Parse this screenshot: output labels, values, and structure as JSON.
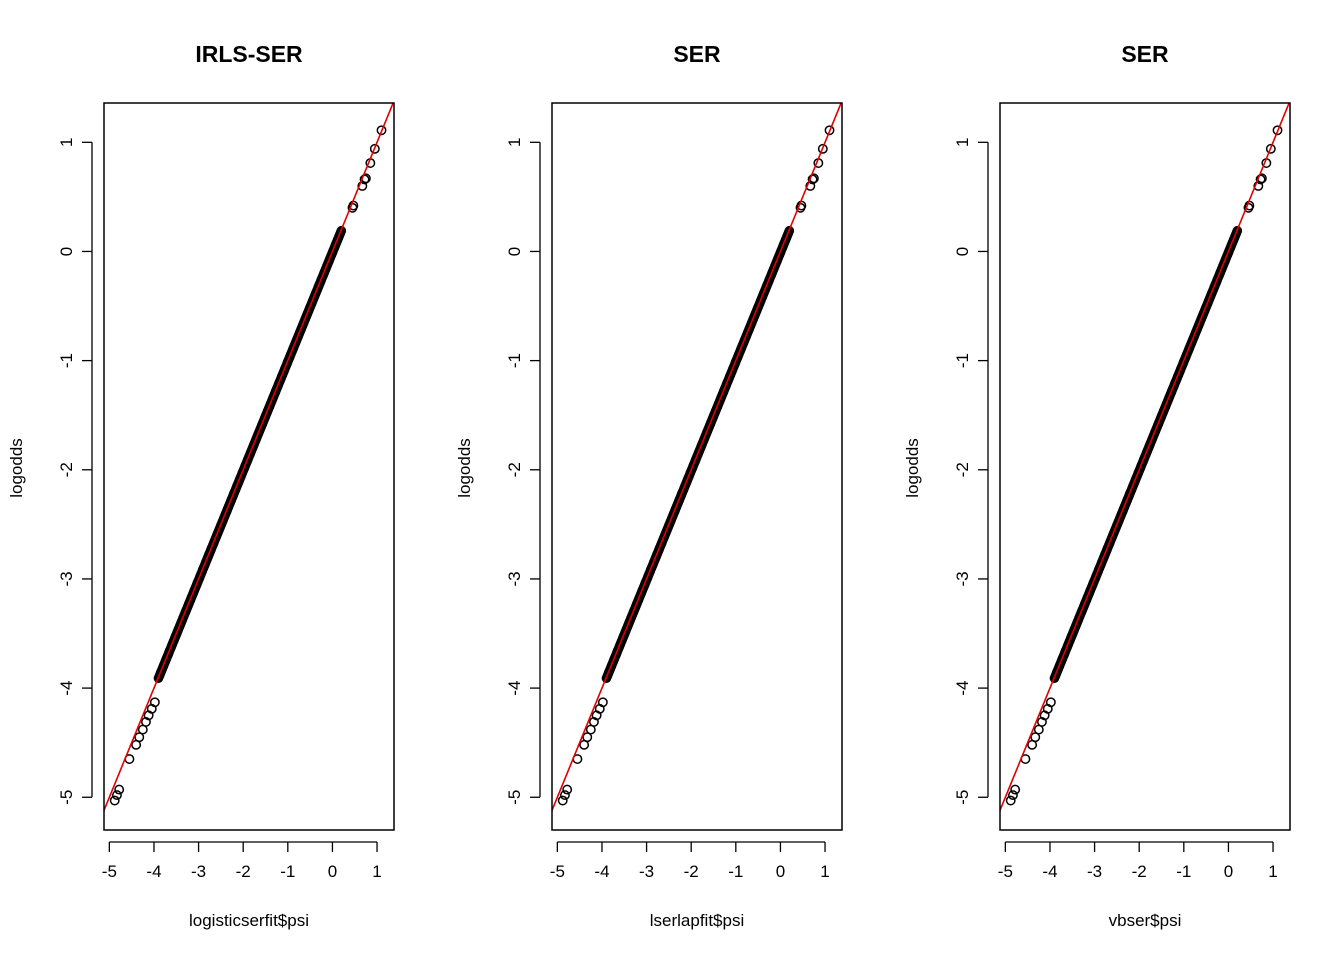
{
  "colors": {
    "points": "#000000",
    "reference_line": "#e00000",
    "axes": "#000000",
    "background": "#ffffff"
  },
  "chart_data": [
    {
      "type": "scatter",
      "title": "IRLS-SER",
      "xlabel": "logisticserfit$psi",
      "ylabel": "logodds",
      "xlim": [
        -5.12,
        1.38
      ],
      "ylim": [
        -5.3,
        1.36
      ],
      "xticks": [
        -5,
        -4,
        -3,
        -2,
        -1,
        0,
        1
      ],
      "yticks": [
        -5,
        -4,
        -3,
        -2,
        -1,
        0,
        1
      ],
      "reference_line": {
        "intercept": 0,
        "slope": 1
      },
      "grid": false,
      "points": {
        "dense_band": {
          "x_from": -3.9,
          "x_to": 0.2,
          "offset": -0.01
        },
        "x": [
          -4.88,
          -4.83,
          -4.78,
          -4.55,
          -4.4,
          -4.33,
          -4.25,
          -4.18,
          -4.12,
          -4.05,
          -3.98,
          0.45,
          0.47,
          0.67,
          0.72,
          0.75,
          0.95,
          1.1,
          0.85
        ],
        "y": [
          -5.03,
          -4.98,
          -4.93,
          -4.65,
          -4.52,
          -4.45,
          -4.38,
          -4.31,
          -4.25,
          -4.19,
          -4.13,
          0.4,
          0.42,
          0.6,
          0.66,
          0.67,
          0.94,
          1.11,
          0.81
        ]
      }
    },
    {
      "type": "scatter",
      "title": "SER",
      "xlabel": "lserlapfit$psi",
      "ylabel": "logodds",
      "xlim": [
        -5.12,
        1.38
      ],
      "ylim": [
        -5.3,
        1.36
      ],
      "xticks": [
        -5,
        -4,
        -3,
        -2,
        -1,
        0,
        1
      ],
      "yticks": [
        -5,
        -4,
        -3,
        -2,
        -1,
        0,
        1
      ],
      "reference_line": {
        "intercept": 0,
        "slope": 1
      },
      "grid": false,
      "points": {
        "dense_band": {
          "x_from": -3.9,
          "x_to": 0.2,
          "offset": -0.01
        },
        "x": [
          -4.88,
          -4.83,
          -4.78,
          -4.55,
          -4.4,
          -4.33,
          -4.25,
          -4.18,
          -4.12,
          -4.05,
          -3.98,
          0.45,
          0.47,
          0.67,
          0.72,
          0.75,
          0.95,
          1.1,
          0.85
        ],
        "y": [
          -5.03,
          -4.98,
          -4.93,
          -4.65,
          -4.52,
          -4.45,
          -4.38,
          -4.31,
          -4.25,
          -4.19,
          -4.13,
          0.4,
          0.42,
          0.6,
          0.66,
          0.67,
          0.94,
          1.11,
          0.81
        ]
      }
    },
    {
      "type": "scatter",
      "title": "SER",
      "xlabel": "vbser$psi",
      "ylabel": "logodds",
      "xlim": [
        -5.12,
        1.38
      ],
      "ylim": [
        -5.3,
        1.36
      ],
      "xticks": [
        -5,
        -4,
        -3,
        -2,
        -1,
        0,
        1
      ],
      "yticks": [
        -5,
        -4,
        -3,
        -2,
        -1,
        0,
        1
      ],
      "reference_line": {
        "intercept": 0,
        "slope": 1
      },
      "grid": false,
      "points": {
        "dense_band": {
          "x_from": -3.9,
          "x_to": 0.2,
          "offset": -0.01
        },
        "x": [
          -4.88,
          -4.83,
          -4.78,
          -4.55,
          -4.4,
          -4.33,
          -4.25,
          -4.18,
          -4.12,
          -4.05,
          -3.98,
          0.45,
          0.47,
          0.67,
          0.72,
          0.75,
          0.95,
          1.1,
          0.85
        ],
        "y": [
          -5.03,
          -4.98,
          -4.93,
          -4.65,
          -4.52,
          -4.45,
          -4.38,
          -4.31,
          -4.25,
          -4.19,
          -4.13,
          0.4,
          0.42,
          0.6,
          0.66,
          0.67,
          0.94,
          1.11,
          0.81
        ]
      }
    }
  ]
}
